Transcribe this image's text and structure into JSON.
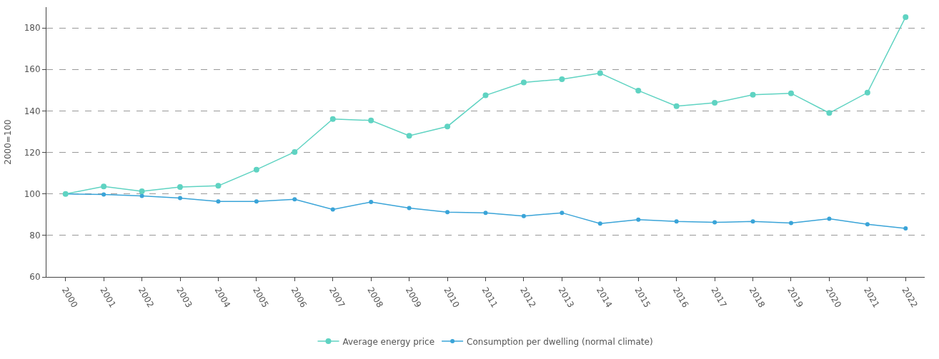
{
  "chart_data": {
    "type": "line",
    "ylabel": "2000=100",
    "categories": [
      "2000",
      "2001",
      "2002",
      "2003",
      "2004",
      "2005",
      "2006",
      "2007",
      "2008",
      "2009",
      "2010",
      "2011",
      "2012",
      "2013",
      "2014",
      "2015",
      "2016",
      "2017",
      "2018",
      "2019",
      "2020",
      "2021",
      "2022"
    ],
    "series": [
      {
        "name": "Average energy price",
        "color": "#5fd3c2",
        "values": [
          100,
          103.6,
          101.3,
          103.3,
          103.9,
          111.7,
          120.2,
          136.1,
          135.4,
          128,
          132.5,
          147.5,
          153.7,
          155.3,
          158.2,
          149.8,
          142.3,
          143.9,
          147.8,
          148.5,
          139,
          148.8,
          185.2
        ]
      },
      {
        "name": "Consumption per dwelling (normal climate)",
        "color": "#3aa4d8",
        "values": [
          100,
          99.7,
          99,
          98,
          96.4,
          96.4,
          97.4,
          92.5,
          96.1,
          93.2,
          91.2,
          90.9,
          89.3,
          90.9,
          85.7,
          87.6,
          86.7,
          86.3,
          86.7,
          86,
          88,
          85.4,
          83.4
        ]
      }
    ],
    "ylim": [
      60,
      190
    ],
    "yticks": [
      60,
      80,
      100,
      120,
      140,
      160,
      180
    ],
    "grid": "y",
    "legend": "bottom",
    "marker": "circle",
    "line_style": "solid"
  }
}
